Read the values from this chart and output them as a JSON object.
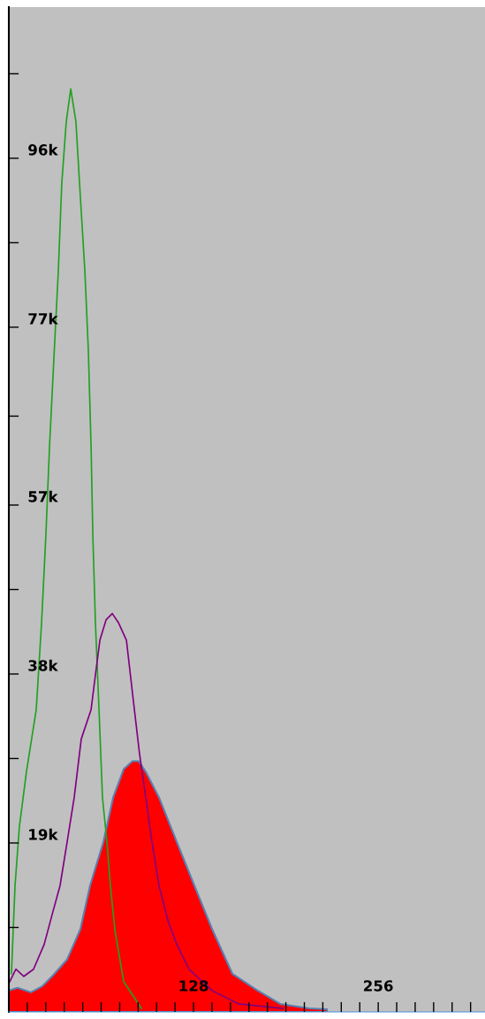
{
  "chart_data": {
    "type": "line",
    "xlim": [
      0,
      330
    ],
    "ylim": [
      0,
      113000
    ],
    "xticks": [
      {
        "value": 12.8,
        "label": null
      },
      {
        "value": 25.6,
        "label": null
      },
      {
        "value": 38.4,
        "label": null
      },
      {
        "value": 51.2,
        "label": null
      },
      {
        "value": 64,
        "label": null
      },
      {
        "value": 76.8,
        "label": null
      },
      {
        "value": 89.6,
        "label": null
      },
      {
        "value": 102.4,
        "label": null
      },
      {
        "value": 115.2,
        "label": null
      },
      128,
      {
        "value": 140.8,
        "label": null
      },
      {
        "value": 153.6,
        "label": null
      },
      {
        "value": 166.4,
        "label": null
      },
      {
        "value": 179.2,
        "label": null
      },
      {
        "value": 192,
        "label": null
      },
      {
        "value": 204.8,
        "label": null
      },
      {
        "value": 217.6,
        "label": null
      },
      {
        "value": 230.4,
        "label": null
      },
      {
        "value": 243.2,
        "label": null
      },
      256,
      {
        "value": 268.8,
        "label": null
      },
      {
        "value": 281.6,
        "label": null
      },
      {
        "value": 294.4,
        "label": null
      },
      {
        "value": 307.2,
        "label": null
      },
      {
        "value": 320,
        "label": null
      }
    ],
    "yticks": [
      {
        "value": 9500,
        "label": null
      },
      {
        "value": 19000,
        "label": "19k"
      },
      {
        "value": 28500,
        "label": null
      },
      {
        "value": 38000,
        "label": "38k"
      },
      {
        "value": 47500,
        "label": null
      },
      {
        "value": 57000,
        "label": "57k"
      },
      {
        "value": 67000,
        "label": null
      },
      {
        "value": 77000,
        "label": "77k"
      },
      {
        "value": 86500,
        "label": null
      },
      {
        "value": 96000,
        "label": "96k"
      },
      {
        "value": 105500,
        "label": null
      }
    ],
    "grid": false,
    "legend": false,
    "marker": "none",
    "line_style": "solid",
    "series": [
      {
        "type": "area",
        "color": "#ff0000",
        "x": [
          0,
          6.1,
          15.3,
          23.3,
          30.6,
          40.4,
          49.6,
          56.3,
          65.5,
          72.3,
          79.6,
          85.7,
          90.0,
          94.9,
          104.1,
          116.4,
          128.6,
          140.9,
          154.9,
          171.5,
          188.0,
          208.2,
          220.5
        ],
        "values": [
          2400,
          2700,
          2200,
          2900,
          4100,
          5900,
          9300,
          14200,
          19100,
          24100,
          27300,
          28200,
          28200,
          27000,
          24100,
          19100,
          14200,
          9300,
          4300,
          2500,
          900,
          400,
          300
        ]
      },
      {
        "color": "#22a022",
        "x": [
          1.8,
          4.3,
          7.3,
          12.2,
          19.0,
          22.7,
          25.7,
          28.2,
          31.2,
          34.3,
          36.7,
          39.8,
          42.9,
          46.5,
          49.0,
          52.7,
          55.1,
          57.0,
          58.2,
          60.0,
          62.5,
          64.9,
          68.0,
          70.4,
          73.5,
          79.6,
          91.9
        ],
        "values": [
          4300,
          14200,
          20800,
          27000,
          34000,
          43800,
          53700,
          63600,
          73400,
          83300,
          93200,
          100100,
          103800,
          100100,
          93200,
          83300,
          74400,
          63600,
          53700,
          43800,
          34000,
          24100,
          19100,
          14200,
          9200,
          3400,
          400
        ]
      },
      {
        "color": "#800080",
        "x": [
          0.6,
          4.9,
          10.4,
          17.1,
          24.5,
          30.6,
          35.5,
          40.4,
          45.3,
          50.2,
          57.0,
          60.0,
          63.1,
          67.4,
          71.7,
          75.9,
          81.5,
          87.0,
          90.6,
          94.9,
          99.2,
          104.1,
          110.2,
          116.4,
          124.9,
          140.9,
          159.2,
          189.8
        ],
        "values": [
          3400,
          4800,
          4000,
          4800,
          7600,
          11300,
          14200,
          19100,
          24100,
          30700,
          34000,
          37900,
          41800,
          44100,
          44800,
          43800,
          41800,
          34000,
          29000,
          24100,
          19100,
          14200,
          10300,
          7600,
          4800,
          2400,
          900,
          400
        ]
      }
    ]
  }
}
